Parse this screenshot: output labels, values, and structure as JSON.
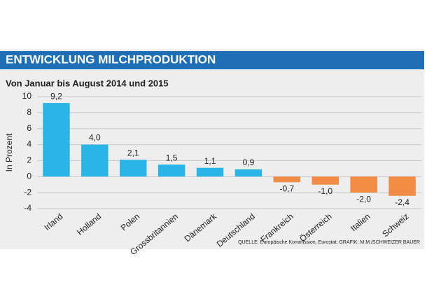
{
  "chart_data": {
    "type": "bar",
    "title": "ENTWICKLUNG MILCHPRODUKTION",
    "subtitle": "Von Januar bis August 2014 und 2015",
    "y_label": "In Prozent",
    "source": "QUELLE: Europäische Kommission, Eurostat; GRAFIK: M.M./SCHWEIZER BAUER",
    "categories": [
      "Irland",
      "Holland",
      "Polen",
      "Grossbritannien",
      "Dänemark",
      "Deutschland",
      "Frankreich",
      "Österreich",
      "Italien",
      "Schweiz"
    ],
    "values": [
      9.2,
      4.0,
      2.1,
      1.5,
      1.1,
      0.9,
      -0.7,
      -1.0,
      -2.0,
      -2.4
    ],
    "value_labels": [
      "9,2",
      "4,0",
      "2,1",
      "1,5",
      "1,1",
      "0,9",
      "-0,7",
      "-1,0",
      "-2,0",
      "-2,4"
    ],
    "colors": [
      "#2bb5e6",
      "#2bb5e6",
      "#2bb5e6",
      "#2bb5e6",
      "#2bb5e6",
      "#2bb5e6",
      "#f28b44",
      "#f28b44",
      "#f28b44",
      "#f28b44"
    ],
    "ylim": [
      -4,
      10
    ],
    "yticks": [
      10,
      8,
      6,
      4,
      2,
      0,
      -2,
      -4
    ],
    "grid": true
  }
}
